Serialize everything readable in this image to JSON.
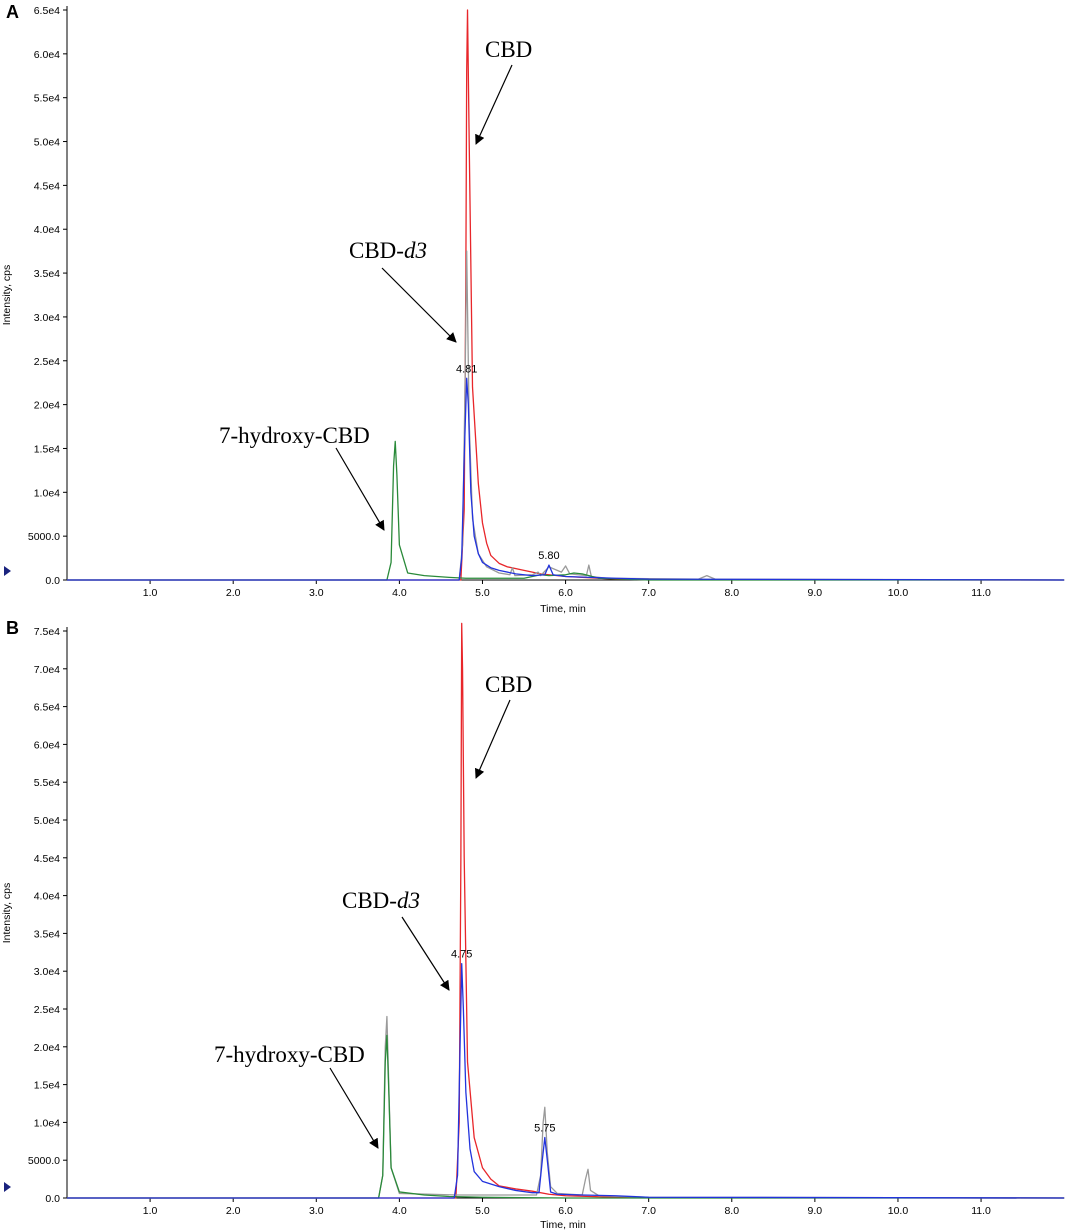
{
  "chart_data": [
    {
      "type": "line",
      "panel": "A",
      "xlabel": "Time, min",
      "ylabel": "Intensity, cps",
      "xlim": [
        0,
        11.95
      ],
      "ylim": [
        0,
        65000
      ],
      "xticks": [
        "1.0",
        "2.0",
        "3.0",
        "4.0",
        "5.0",
        "6.0",
        "7.0",
        "8.0",
        "9.0",
        "10.0",
        "11.0"
      ],
      "yticks": [
        "0.0",
        "5000.0",
        "1.0e4",
        "1.5e4",
        "2.0e4",
        "2.5e4",
        "3.0e4",
        "3.5e4",
        "4.0e4",
        "4.5e4",
        "5.0e4",
        "5.5e4",
        "6.0e4",
        "6.5e4"
      ],
      "series": [
        {
          "color": "#e8262a",
          "x": [
            0,
            3.0,
            4.6,
            4.74,
            4.78,
            4.8,
            4.81,
            4.82,
            4.84,
            4.88,
            4.95,
            5.0,
            5.05,
            5.1,
            5.2,
            5.3,
            5.5,
            5.7,
            5.9,
            6.0,
            6.2,
            6.4,
            6.6,
            7.0,
            12.0
          ],
          "y": [
            0,
            0,
            0,
            0,
            8000,
            35000,
            58000,
            65000,
            50000,
            22000,
            11000,
            6500,
            4200,
            2800,
            1900,
            1500,
            1100,
            700,
            500,
            400,
            300,
            200,
            100,
            50,
            0
          ]
        },
        {
          "color": "#9a9a9a",
          "x": [
            0,
            4.72,
            4.76,
            4.79,
            4.81,
            4.84,
            4.88,
            4.95,
            5.05,
            5.2,
            5.33,
            5.36,
            5.39,
            5.6,
            5.67,
            5.7,
            5.8,
            5.95,
            6.0,
            6.05,
            6.25,
            6.28,
            6.31,
            6.5,
            7.6,
            7.7,
            7.8,
            12.0
          ],
          "y": [
            0,
            0,
            4000,
            22000,
            37500,
            18000,
            7000,
            3000,
            1500,
            800,
            600,
            1400,
            500,
            600,
            900,
            500,
            1500,
            900,
            1600,
            700,
            500,
            1700,
            400,
            200,
            100,
            500,
            100,
            0
          ]
        },
        {
          "color": "#2a8a3a",
          "x": [
            0,
            3.85,
            3.9,
            3.93,
            3.95,
            3.97,
            4.0,
            4.1,
            4.3,
            4.6,
            4.8,
            5.5,
            5.7,
            5.8,
            6.0,
            6.1,
            6.2,
            6.4,
            7.0,
            12.0
          ],
          "y": [
            0,
            0,
            2000,
            13000,
            15800,
            12000,
            4000,
            800,
            500,
            300,
            200,
            200,
            600,
            500,
            600,
            800,
            700,
            200,
            0,
            0
          ]
        },
        {
          "color": "#2233dd",
          "x": [
            0,
            4.72,
            4.75,
            4.78,
            4.81,
            4.83,
            4.86,
            4.9,
            4.95,
            5.0,
            5.1,
            5.2,
            5.4,
            5.6,
            5.75,
            5.8,
            5.85,
            6.0,
            6.3,
            6.6,
            7.0,
            12.0
          ],
          "y": [
            0,
            0,
            2500,
            14000,
            23000,
            20000,
            10000,
            5000,
            3000,
            2000,
            1400,
            1100,
            700,
            500,
            600,
            1700,
            600,
            400,
            300,
            200,
            100,
            0
          ]
        }
      ],
      "peak_labels": [
        {
          "x": 4.81,
          "text": "4.81"
        },
        {
          "x": 5.8,
          "text": "5.80"
        }
      ],
      "annotations": [
        "CBD",
        "CBD-",
        "d3",
        "7-hydroxy-CBD"
      ]
    },
    {
      "type": "line",
      "panel": "B",
      "xlabel": "Time, min",
      "ylabel": "Intensity, cps",
      "xlim": [
        0,
        11.95
      ],
      "ylim": [
        0,
        75000
      ],
      "xticks": [
        "1.0",
        "2.0",
        "3.0",
        "4.0",
        "5.0",
        "6.0",
        "7.0",
        "8.0",
        "9.0",
        "10.0",
        "11.0"
      ],
      "yticks": [
        "0.0",
        "5000.0",
        "1.0e4",
        "1.5e4",
        "2.0e4",
        "2.5e4",
        "3.0e4",
        "3.5e4",
        "4.0e4",
        "4.5e4",
        "5.0e4",
        "5.5e4",
        "6.0e4",
        "6.5e4",
        "7.0e4",
        "7.5e4"
      ],
      "series": [
        {
          "color": "#e8262a",
          "x": [
            0,
            3.0,
            4.6,
            4.68,
            4.72,
            4.74,
            4.75,
            4.76,
            4.78,
            4.82,
            4.9,
            5.0,
            5.1,
            5.2,
            5.4,
            5.6,
            5.8,
            6.0,
            6.3,
            6.6,
            7.0,
            12.0
          ],
          "y": [
            0,
            0,
            0,
            0,
            10000,
            45000,
            76000,
            70000,
            45000,
            18000,
            8000,
            4000,
            2500,
            1600,
            1200,
            900,
            500,
            300,
            200,
            100,
            50,
            0
          ]
        },
        {
          "color": "#9a9a9a",
          "x": [
            0,
            3.75,
            3.8,
            3.83,
            3.85,
            3.87,
            3.9,
            4.0,
            4.7,
            5.65,
            5.7,
            5.73,
            5.75,
            5.78,
            5.82,
            5.9,
            6.2,
            6.24,
            6.27,
            6.3,
            6.4,
            7.0,
            12.0
          ],
          "y": [
            0,
            0,
            3000,
            20000,
            24000,
            16000,
            4000,
            600,
            400,
            400,
            3000,
            10000,
            12000,
            6000,
            1500,
            600,
            400,
            2500,
            3800,
            1000,
            300,
            100,
            0
          ]
        },
        {
          "color": "#2a8a3a",
          "x": [
            0,
            3.75,
            3.8,
            3.83,
            3.85,
            3.87,
            3.9,
            4.0,
            4.3,
            4.6,
            5.0,
            6.0,
            12.0
          ],
          "y": [
            0,
            0,
            3000,
            18000,
            21500,
            15000,
            4000,
            800,
            400,
            200,
            100,
            0,
            0
          ]
        },
        {
          "color": "#2233dd",
          "x": [
            0,
            4.66,
            4.7,
            4.73,
            4.75,
            4.77,
            4.8,
            4.85,
            4.9,
            5.0,
            5.2,
            5.4,
            5.6,
            5.68,
            5.72,
            5.75,
            5.78,
            5.82,
            5.9,
            6.2,
            6.6,
            7.0,
            12.0
          ],
          "y": [
            0,
            0,
            3000,
            20000,
            31000,
            25000,
            14000,
            6500,
            3500,
            2200,
            1500,
            1000,
            700,
            700,
            5000,
            8000,
            5000,
            800,
            500,
            400,
            300,
            100,
            0
          ]
        }
      ],
      "peak_labels": [
        {
          "x": 4.75,
          "text": "4.75"
        },
        {
          "x": 5.75,
          "text": "5.75"
        }
      ],
      "annotations": [
        "CBD",
        "CBD-",
        "d3",
        "7-hydroxy-CBD"
      ]
    }
  ]
}
